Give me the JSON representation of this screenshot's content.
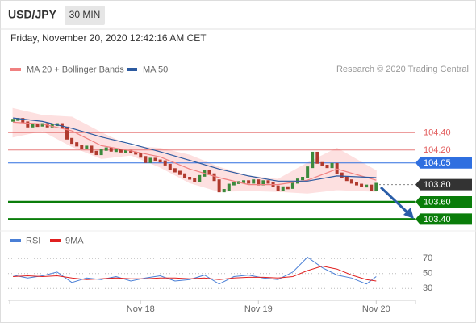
{
  "header": {
    "symbol": "USD/JPY",
    "interval": "30 MIN",
    "timestamp": "Friday, November 20, 2020 12:42:16 AM CET",
    "source": "Research © 2020 Trading Central"
  },
  "chart_data": [
    {
      "type": "candlestick",
      "xlim": [
        -1,
        82
      ],
      "ylim": [
        103.32,
        105.0
      ],
      "candles": {
        "up_color": "#3c8a3c",
        "down_color": "#b03a2e",
        "close": [
          104.55,
          104.56,
          104.52,
          104.47,
          104.49,
          104.48,
          104.5,
          104.47,
          104.49,
          104.5,
          104.46,
          104.33,
          104.28,
          104.25,
          104.22,
          104.24,
          104.18,
          104.15,
          104.2,
          104.22,
          104.19,
          104.2,
          104.18,
          104.19,
          104.17,
          104.16,
          104.12,
          104.06,
          104.1,
          104.08,
          104.07,
          104.03,
          103.98,
          103.95,
          103.92,
          103.88,
          103.87,
          103.84,
          103.9,
          103.96,
          103.92,
          103.85,
          103.72,
          103.74,
          103.8,
          103.82,
          103.83,
          103.84,
          103.82,
          103.85,
          103.8,
          103.84,
          103.82,
          103.78,
          103.74,
          103.77,
          103.76,
          103.82,
          103.86,
          103.88,
          104.0,
          104.17,
          104.05,
          104.02,
          104.0,
          104.04,
          103.93,
          103.88,
          103.85,
          103.82,
          103.8,
          103.78,
          103.79,
          103.74,
          103.81
        ]
      },
      "series": [
        {
          "name": "MA 20 + Bollinger Bands",
          "color": "#f08080",
          "band_color": "#fde0e0",
          "x": [
            0,
            6,
            12,
            18,
            24,
            30,
            36,
            42,
            48,
            54,
            60,
            66,
            74
          ],
          "values": [
            104.52,
            104.5,
            104.42,
            104.25,
            104.19,
            104.12,
            103.98,
            103.88,
            103.8,
            103.8,
            103.85,
            103.98,
            103.85
          ],
          "upper": [
            104.68,
            104.6,
            104.58,
            104.4,
            104.24,
            104.22,
            104.14,
            104.0,
            103.9,
            103.86,
            104.05,
            104.22,
            103.96
          ],
          "lower": [
            104.35,
            104.42,
            104.24,
            104.1,
            104.14,
            104.0,
            103.82,
            103.72,
            103.73,
            103.72,
            103.7,
            103.74,
            103.72
          ]
        },
        {
          "name": "MA 50",
          "color": "#2c5aa0",
          "x": [
            0,
            6,
            12,
            18,
            24,
            30,
            36,
            42,
            48,
            54,
            60,
            66,
            74
          ],
          "values": [
            104.57,
            104.53,
            104.45,
            104.35,
            104.27,
            104.18,
            104.08,
            103.98,
            103.9,
            103.84,
            103.84,
            103.9,
            103.88
          ]
        }
      ],
      "levels": [
        {
          "value": 104.4,
          "label": "104.40",
          "color": "#e25c5c",
          "boxed": false
        },
        {
          "value": 104.2,
          "label": "104.20",
          "color": "#e25c5c",
          "boxed": false
        },
        {
          "value": 104.05,
          "label": "104.05",
          "color": "#2f6fe0",
          "boxed": true
        },
        {
          "value": 103.8,
          "label": "103.80",
          "color": "#333333",
          "boxed": true,
          "dashed": true
        },
        {
          "value": 103.6,
          "label": "103.60",
          "color": "#0a7d0a",
          "boxed": true
        },
        {
          "value": 103.4,
          "label": "103.40",
          "color": "#0a7d0a",
          "boxed": true
        }
      ]
    },
    {
      "type": "line",
      "xlim": [
        -1,
        82
      ],
      "ylim": [
        14,
        92
      ],
      "yticks": [
        30,
        50,
        70
      ],
      "xticks": [
        {
          "value": 26,
          "label": "Nov 18"
        },
        {
          "value": 50,
          "label": "Nov 19"
        },
        {
          "value": 74,
          "label": "Nov 20"
        }
      ],
      "series": [
        {
          "name": "RSI",
          "color": "#4a7fd6",
          "x": [
            0,
            3,
            6,
            9,
            12,
            15,
            18,
            21,
            24,
            27,
            30,
            33,
            36,
            39,
            42,
            45,
            48,
            51,
            54,
            57,
            60,
            63,
            66,
            69,
            72,
            74
          ],
          "values": [
            48,
            44,
            47,
            52,
            38,
            44,
            42,
            46,
            40,
            44,
            47,
            40,
            42,
            48,
            36,
            46,
            48,
            44,
            42,
            52,
            72,
            58,
            48,
            44,
            36,
            46
          ]
        },
        {
          "name": "9MA",
          "color": "#e02020",
          "x": [
            0,
            3,
            6,
            9,
            12,
            15,
            18,
            21,
            24,
            27,
            30,
            33,
            36,
            39,
            42,
            45,
            48,
            51,
            54,
            57,
            60,
            63,
            66,
            69,
            72,
            74
          ],
          "values": [
            46,
            47,
            46,
            47,
            44,
            42,
            43,
            44,
            43,
            43,
            44,
            44,
            43,
            44,
            42,
            44,
            45,
            45,
            44,
            46,
            54,
            60,
            56,
            48,
            42,
            40
          ]
        }
      ]
    }
  ]
}
